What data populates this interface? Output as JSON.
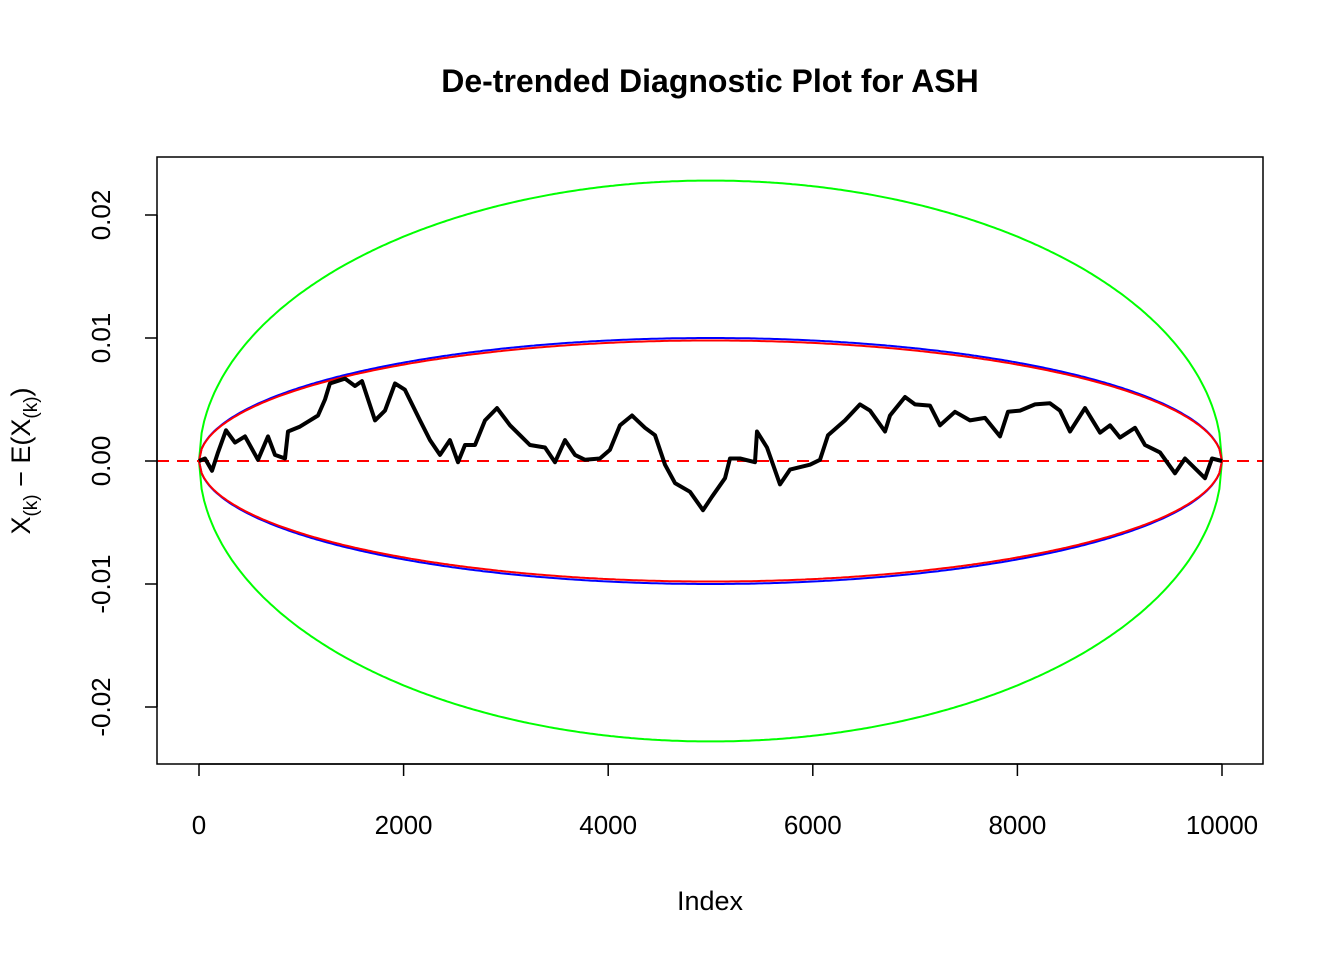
{
  "chart_data": {
    "type": "line",
    "title": "De-trended Diagnostic Plot for ASH",
    "xlabel": "Index",
    "ylabel": {
      "base": "X",
      "sub1": "(k)",
      "mid": " − E(X",
      "sub2": "(k)",
      "end": ")"
    },
    "xlim": [
      -200,
      10200
    ],
    "ylim": [
      -0.0245,
      0.0245
    ],
    "x_ticks": [
      0,
      2000,
      4000,
      6000,
      8000,
      10000
    ],
    "x_tick_labels": [
      "0",
      "2000",
      "4000",
      "6000",
      "8000",
      "10000"
    ],
    "y_ticks": [
      -0.02,
      -0.01,
      0,
      0.01,
      0.02
    ],
    "y_tick_labels": [
      "-0.02",
      "-0.01",
      "0.00",
      "0.01",
      "0.02"
    ],
    "grid": false,
    "n": 10000,
    "reference_line": {
      "y": 0,
      "color": "#ff0000",
      "style": "dashed"
    },
    "envelopes": [
      {
        "color": "#00ff00",
        "peak": 0.0228
      },
      {
        "color": "#0000ff",
        "peak": 0.01
      },
      {
        "color": "#ff0000",
        "peak": 0.0098
      }
    ],
    "series": [
      {
        "color": "#000000",
        "x": [
          0,
          59,
          127,
          186,
          264,
          352,
          450,
          577,
          674,
          743,
          841,
          870,
          987,
          1085,
          1163,
          1232,
          1280,
          1427,
          1525,
          1593,
          1720,
          1818,
          1916,
          2013,
          2160,
          2258,
          2356,
          2453,
          2532,
          2600,
          2698,
          2796,
          2913,
          3040,
          3138,
          3235,
          3382,
          3480,
          3578,
          3675,
          3773,
          3919,
          4017,
          4115,
          4233,
          4360,
          4457,
          4555,
          4653,
          4800,
          4927,
          5015,
          5142,
          5191,
          5289,
          5435,
          5455,
          5552,
          5679,
          5777,
          5973,
          6070,
          6149,
          6315,
          6461,
          6559,
          6706,
          6755,
          6901,
          6999,
          7146,
          7243,
          7390,
          7537,
          7683,
          7830,
          7908,
          8025,
          8172,
          8318,
          8416,
          8514,
          8661,
          8808,
          8905,
          9003,
          9150,
          9247,
          9394,
          9541,
          9638,
          9834,
          9902,
          10000
        ],
        "y": [
          0,
          0.0002,
          -0.0008,
          0.0007,
          0.0025,
          0.0015,
          0.002,
          0.0001,
          0.002,
          0.0005,
          0.0002,
          0.0024,
          0.0028,
          0.0033,
          0.0037,
          0.005,
          0.0063,
          0.0067,
          0.0061,
          0.0065,
          0.0033,
          0.0041,
          0.0063,
          0.0058,
          0.0033,
          0.0017,
          0.0005,
          0.0017,
          -0.0001,
          0.0013,
          0.0013,
          0.0033,
          0.0043,
          0.0029,
          0.0021,
          0.0013,
          0.0011,
          -0.0001,
          0.0017,
          0.0005,
          0.0001,
          0.0002,
          0.0009,
          0.0029,
          0.0037,
          0.0027,
          0.0021,
          -0.0003,
          -0.0018,
          -0.0025,
          -0.004,
          -0.0029,
          -0.0014,
          0.0002,
          0.0002,
          -0.0001,
          0.0024,
          0.0011,
          -0.0019,
          -0.0007,
          -0.0003,
          0.0001,
          0.0021,
          0.0033,
          0.0046,
          0.0041,
          0.0024,
          0.0037,
          0.0052,
          0.0046,
          0.0045,
          0.0029,
          0.004,
          0.0033,
          0.0035,
          0.002,
          0.004,
          0.0041,
          0.0046,
          0.0047,
          0.0041,
          0.0024,
          0.0043,
          0.0023,
          0.0029,
          0.0019,
          0.0027,
          0.0013,
          0.0007,
          -0.001,
          0.0002,
          -0.0014,
          0.0002,
          0
        ]
      }
    ]
  }
}
